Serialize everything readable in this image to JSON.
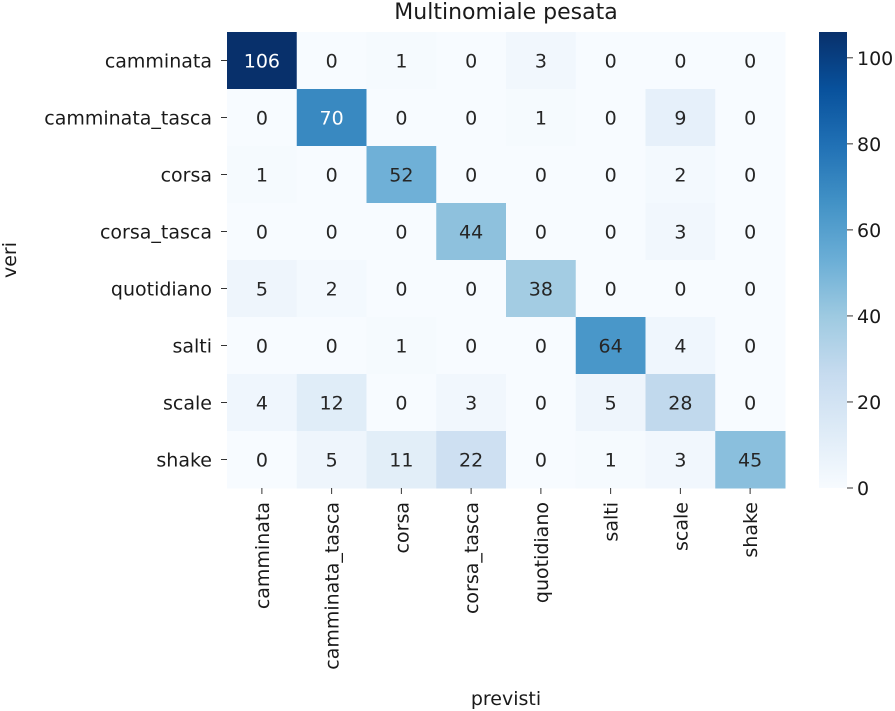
{
  "chart_data": {
    "type": "heatmap",
    "title": "Multinomiale pesata",
    "xlabel": "previsti",
    "ylabel": "veri",
    "x_categories": [
      "camminata",
      "camminata_tasca",
      "corsa",
      "corsa_tasca",
      "quotidiano",
      "salti",
      "scale",
      "shake"
    ],
    "y_categories": [
      "camminata",
      "camminata_tasca",
      "corsa",
      "corsa_tasca",
      "quotidiano",
      "salti",
      "scale",
      "shake"
    ],
    "values": [
      [
        106,
        0,
        1,
        0,
        3,
        0,
        0,
        0
      ],
      [
        0,
        70,
        0,
        0,
        1,
        0,
        9,
        0
      ],
      [
        1,
        0,
        52,
        0,
        0,
        0,
        2,
        0
      ],
      [
        0,
        0,
        0,
        44,
        0,
        0,
        3,
        0
      ],
      [
        5,
        2,
        0,
        0,
        38,
        0,
        0,
        0
      ],
      [
        0,
        0,
        1,
        0,
        0,
        64,
        4,
        0
      ],
      [
        4,
        12,
        0,
        3,
        0,
        5,
        28,
        0
      ],
      [
        0,
        5,
        11,
        22,
        0,
        1,
        3,
        45
      ]
    ],
    "vmin": 0,
    "vmax": 106,
    "colormap": "Blues",
    "colorbar_ticks": [
      0,
      20,
      40,
      60,
      80,
      100
    ],
    "annotations": true
  }
}
